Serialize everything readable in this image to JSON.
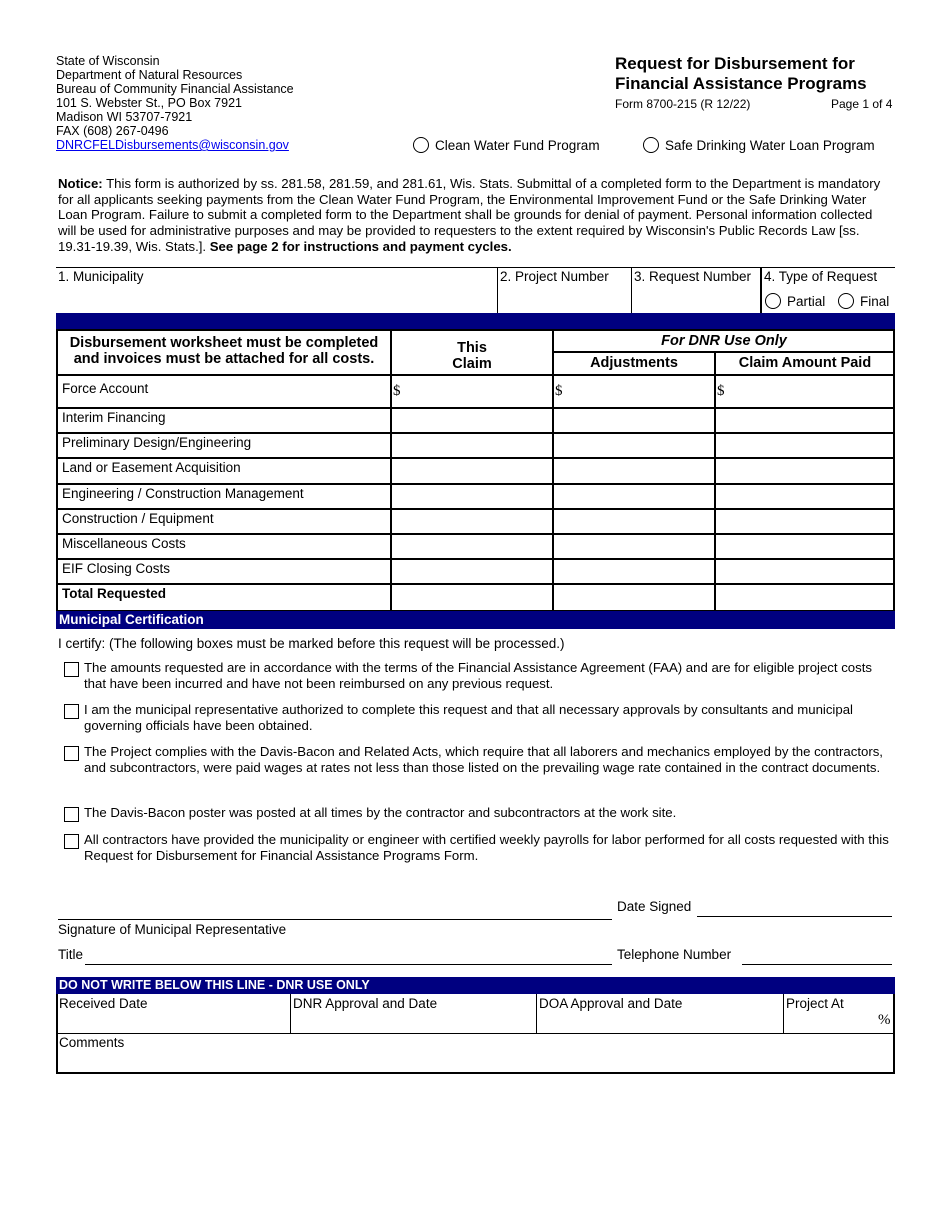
{
  "agency": {
    "lines": [
      "State of Wisconsin",
      "Department of Natural Resources",
      "Bureau of Community Financial Assistance",
      "101 S. Webster St., PO Box 7921",
      "Madison  WI   53707-7921",
      "FAX (608) 267-0496"
    ],
    "email": "DNRCFELDisbursements@wisconsin.gov"
  },
  "title": {
    "line1": "Request for Disbursement for",
    "line2": "Financial Assistance Programs",
    "form_number": "Form 8700-215   (R 12/22)",
    "page": "Page 1 of 4"
  },
  "programs": [
    {
      "label": "Clean Water Fund Program",
      "selected": false
    },
    {
      "label": "Safe Drinking Water Loan Program",
      "selected": false
    }
  ],
  "notice": {
    "label": "Notice:",
    "text": " This form is authorized by ss. 281.58, 281.59,  and 281.61, Wis. Stats.  Submittal of a completed form to the Department is mandatory for all applicants seeking payments from the Clean Water Fund Program, the Environmental Improvement Fund or the Safe Drinking Water Loan Program. Failure to submit a completed form to the Department shall be grounds for denial of payment. Personal information collected will be used for administrative purposes and may be provided to requesters to the extent required by Wisconsin's Public Records Law [ss. 19.31-19.39, Wis. Stats.].  ",
    "bold_end": "See page 2 for instructions and payment cycles."
  },
  "fields": {
    "municipality": "1. Municipality",
    "project_number": "2. Project Number",
    "request_number": "3. Request Number",
    "type_of_request": "4. Type of Request",
    "partial": "Partial",
    "final": "Final"
  },
  "table": {
    "instruction_line1": "Disbursement worksheet must be completed",
    "instruction_line2": "and invoices must be attached for all costs.",
    "this_claim_1": "This",
    "this_claim_2": "Claim",
    "dnr_use": "For DNR Use Only",
    "adjustments": "Adjustments",
    "amount_paid": "Claim  Amount Paid",
    "currency": "$",
    "rows": [
      "Force Account",
      "Interim Financing",
      "Preliminary Design/Engineering",
      "Land or Easement Acquisition",
      "Engineering / Construction Management",
      "Construction / Equipment",
      "Miscellaneous Costs",
      "EIF Closing Costs"
    ],
    "total": "Total Requested"
  },
  "certification": {
    "heading": "Municipal Certification",
    "intro": "I certify:  (The following boxes must be marked before this request will be processed.)",
    "items": [
      "The amounts requested are in accordance with the terms of the Financial Assistance Agreement (FAA) and are for eligible project costs that have been incurred and have not been reimbursed on any previous request.",
      "I am the municipal representative authorized to complete this request and that all necessary approvals by consultants and municipal governing officials have been obtained.",
      "The Project complies with the Davis-Bacon and Related Acts, which require that all laborers and mechanics employed by the contractors, and subcontractors, were paid wages at rates not less than those listed on the prevailing wage rate contained in the contract documents.",
      "The Davis-Bacon poster was posted at all times by the contractor and subcontractors at the work site.",
      "All contractors have provided the municipality or engineer with certified weekly payrolls for labor performed for all costs requested with this Request for Disbursement for Financial Assistance Programs Form."
    ]
  },
  "signature": {
    "date_signed": "Date Signed",
    "signature_label": "Signature of Municipal Representative",
    "title": "Title",
    "telephone": "Telephone Number"
  },
  "dnr_only": {
    "heading": "DO NOT WRITE BELOW THIS LINE - DNR USE ONLY",
    "received": "Received Date",
    "dnr_approval": "DNR Approval and Date",
    "doa_approval": "DOA Approval and Date",
    "project_at": "Project At",
    "percent": "%",
    "comments": "Comments"
  },
  "colors": {
    "band": "#000080"
  }
}
